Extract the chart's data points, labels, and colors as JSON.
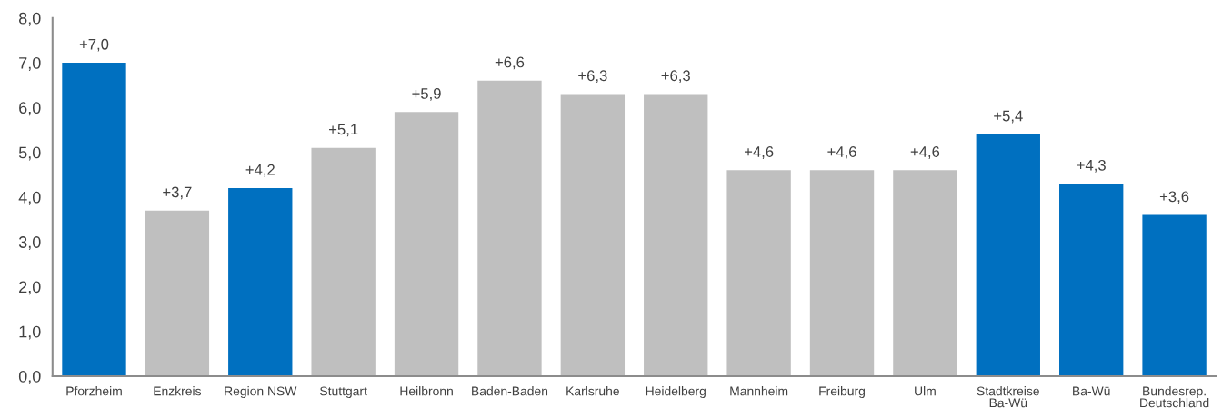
{
  "chart_data": {
    "type": "bar",
    "categories": [
      "Pforzheim",
      "Enzkreis",
      "Region NSW",
      "Stuttgart",
      "Heilbronn",
      "Baden-Baden",
      "Karlsruhe",
      "Heidelberg",
      "Mannheim",
      "Freiburg",
      "Ulm",
      "Stadtkreise\nBa-Wü",
      "Ba-Wü",
      "Bundesrep.\nDeutschland"
    ],
    "values": [
      7.0,
      3.7,
      4.2,
      5.1,
      5.9,
      6.6,
      6.3,
      6.3,
      4.6,
      4.6,
      4.6,
      5.4,
      4.3,
      3.6
    ],
    "colors": [
      "#0070c0",
      "#bfbfbf",
      "#0070c0",
      "#bfbfbf",
      "#bfbfbf",
      "#bfbfbf",
      "#bfbfbf",
      "#bfbfbf",
      "#bfbfbf",
      "#bfbfbf",
      "#bfbfbf",
      "#0070c0",
      "#0070c0",
      "#0070c0"
    ],
    "value_labels": [
      "+7,0",
      "+3,7",
      "+4,2",
      "+5,1",
      "+5,9",
      "+6,6",
      "+6,3",
      "+6,3",
      "+4,6",
      "+4,6",
      "+4,6",
      "+5,4",
      "+4,3",
      "+3,6"
    ],
    "ylim": [
      0,
      8
    ],
    "yticks": [
      {
        "value": 0,
        "label": "0,0"
      },
      {
        "value": 1,
        "label": "1,0"
      },
      {
        "value": 2,
        "label": "2,0"
      },
      {
        "value": 3,
        "label": "3,0"
      },
      {
        "value": 4,
        "label": "4,0"
      },
      {
        "value": 5,
        "label": "5,0"
      },
      {
        "value": 6,
        "label": "6,0"
      },
      {
        "value": 7,
        "label": "7,0"
      },
      {
        "value": 8,
        "label": "8,0"
      }
    ],
    "grid": false
  }
}
